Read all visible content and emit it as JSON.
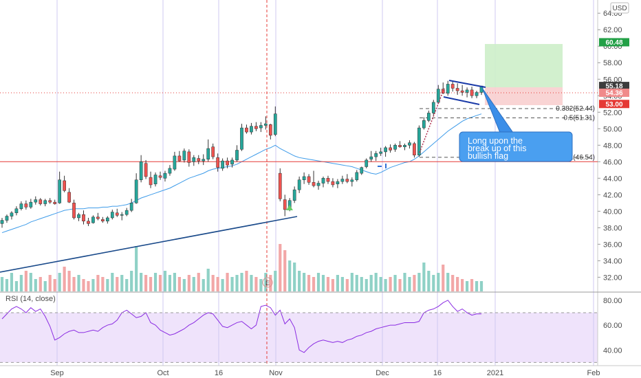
{
  "chart_data": {
    "type": "candlestick",
    "currency": "USD",
    "price_axis": {
      "ticks": [
        "64.00",
        "62.00",
        "60.00",
        "58.00",
        "56.00",
        "54.00",
        "52.00",
        "50.00",
        "48.00",
        "46.00",
        "44.00",
        "42.00",
        "40.00",
        "38.00",
        "36.00",
        "34.00",
        "32.00"
      ],
      "range": [
        30.2,
        65.6
      ]
    },
    "time_axis": {
      "labels": [
        "Sep",
        "Oct",
        "16",
        "Nov",
        "Dec",
        "16",
        "2021",
        "Feb"
      ]
    },
    "price_tags": {
      "target": "60.48",
      "last": "55.18",
      "close": "54.36",
      "stop": "53.00"
    },
    "fib_levels": [
      {
        "label": "0.382(52.44)",
        "value": 52.44
      },
      {
        "label": "0.5(51.31)",
        "value": 51.31
      },
      {
        "label": "1(46.54)",
        "value": 46.54
      }
    ],
    "horizontal_line": 46.0,
    "annotation": "Long upon the break up of this bullish flag",
    "event_marker": "E",
    "rsi": {
      "label": "RSI (14, close)",
      "ticks": [
        "80.00",
        "60.00",
        "40.00"
      ],
      "range": [
        28,
        86
      ],
      "upper_band": 70,
      "lower_band": 30,
      "values": [
        65,
        69,
        73,
        75,
        73,
        70,
        74,
        71,
        73,
        67,
        59,
        48,
        50,
        53,
        55,
        56,
        54,
        54,
        55,
        56,
        55,
        58,
        60,
        61,
        64,
        70,
        72,
        69,
        66,
        67,
        70,
        62,
        60,
        56,
        54,
        52,
        53,
        55,
        57,
        60,
        62,
        65,
        68,
        70,
        69,
        64,
        59,
        58,
        60,
        62,
        63,
        60,
        57,
        60,
        75,
        76,
        74,
        68,
        72,
        61,
        65,
        58,
        40,
        38,
        42,
        45,
        47,
        48,
        47,
        46,
        47,
        46,
        48,
        49,
        51,
        52,
        54,
        55,
        57,
        58,
        59,
        60,
        60,
        61,
        62,
        62,
        62,
        63,
        70,
        72,
        73,
        75,
        78,
        80,
        75,
        71,
        73,
        70,
        68,
        69,
        69
      ]
    },
    "candles": [
      [
        38.5,
        39.2,
        38.0,
        38.9
      ],
      [
        38.9,
        39.6,
        38.6,
        39.4
      ],
      [
        39.4,
        40.0,
        39.0,
        39.8
      ],
      [
        39.8,
        40.6,
        39.5,
        40.3
      ],
      [
        40.3,
        41.2,
        40.1,
        40.9
      ],
      [
        40.9,
        41.3,
        40.2,
        40.5
      ],
      [
        40.5,
        41.5,
        40.3,
        41.1
      ],
      [
        41.1,
        41.8,
        40.8,
        41.4
      ],
      [
        41.4,
        41.6,
        40.7,
        40.9
      ],
      [
        40.9,
        41.5,
        40.6,
        41.3
      ],
      [
        41.3,
        41.6,
        40.9,
        41.1
      ],
      [
        41.1,
        41.4,
        40.8,
        40.9
      ],
      [
        41.0,
        44.8,
        40.9,
        43.8
      ],
      [
        43.7,
        44.3,
        42.3,
        42.5
      ],
      [
        42.3,
        42.8,
        41.0,
        41.1
      ],
      [
        41.0,
        41.4,
        39.0,
        39.2
      ],
      [
        39.2,
        39.8,
        38.8,
        39.6
      ],
      [
        39.6,
        40.1,
        38.4,
        38.8
      ],
      [
        38.8,
        39.2,
        38.2,
        38.5
      ],
      [
        38.6,
        39.5,
        38.5,
        39.3
      ],
      [
        39.3,
        39.8,
        38.9,
        39.1
      ],
      [
        39.0,
        39.3,
        38.6,
        38.8
      ],
      [
        38.8,
        39.4,
        38.5,
        39.2
      ],
      [
        39.2,
        40.2,
        39.0,
        39.9
      ],
      [
        39.8,
        40.3,
        39.3,
        39.5
      ],
      [
        39.5,
        39.9,
        38.9,
        39.6
      ],
      [
        39.6,
        40.4,
        39.4,
        40.1
      ],
      [
        40.1,
        41.5,
        39.9,
        41.0
      ],
      [
        41.0,
        44.6,
        40.9,
        43.8
      ],
      [
        43.8,
        46.8,
        43.5,
        46.0
      ],
      [
        45.8,
        46.2,
        43.9,
        44.2
      ],
      [
        44.1,
        44.8,
        42.8,
        43.2
      ],
      [
        43.3,
        44.7,
        43.0,
        44.4
      ],
      [
        44.3,
        44.8,
        43.8,
        44.1
      ],
      [
        44.0,
        44.9,
        43.6,
        44.6
      ],
      [
        44.6,
        45.6,
        44.3,
        45.2
      ],
      [
        45.1,
        47.2,
        44.9,
        46.7
      ],
      [
        46.7,
        47.3,
        46.0,
        46.1
      ],
      [
        46.2,
        47.6,
        45.9,
        47.3
      ],
      [
        47.2,
        47.5,
        45.4,
        45.9
      ],
      [
        46.0,
        46.8,
        45.5,
        46.5
      ],
      [
        46.4,
        46.8,
        45.7,
        46.1
      ],
      [
        46.1,
        46.9,
        45.6,
        46.3
      ],
      [
        46.3,
        48.7,
        46.0,
        47.6
      ],
      [
        47.8,
        48.2,
        46.3,
        46.6
      ],
      [
        46.5,
        47.0,
        44.8,
        45.3
      ],
      [
        45.2,
        46.4,
        44.9,
        46.1
      ],
      [
        46.1,
        46.5,
        45.2,
        45.6
      ],
      [
        45.7,
        46.5,
        45.3,
        46.2
      ],
      [
        46.2,
        48.0,
        46.0,
        47.4
      ],
      [
        47.5,
        50.6,
        47.3,
        50.1
      ],
      [
        50.1,
        50.5,
        49.4,
        49.6
      ],
      [
        49.6,
        50.7,
        49.3,
        50.3
      ],
      [
        50.3,
        50.8,
        49.7,
        50.0
      ],
      [
        50.1,
        50.8,
        49.6,
        50.4
      ],
      [
        50.4,
        51.5,
        49.9,
        50.6
      ],
      [
        50.5,
        50.6,
        48.7,
        49.2
      ],
      [
        49.3,
        52.7,
        49.1,
        51.8
      ],
      [
        44.6,
        45.2,
        41.2,
        41.5
      ],
      [
        41.4,
        42.0,
        39.4,
        40.2
      ],
      [
        40.2,
        41.6,
        40.0,
        41.3
      ],
      [
        41.3,
        43.0,
        41.0,
        42.6
      ],
      [
        42.6,
        44.2,
        42.2,
        43.8
      ],
      [
        43.8,
        44.7,
        43.3,
        44.2
      ],
      [
        44.2,
        44.5,
        43.2,
        43.5
      ],
      [
        43.5,
        44.9,
        42.9,
        43.1
      ],
      [
        43.1,
        43.7,
        42.6,
        43.4
      ],
      [
        43.4,
        44.2,
        42.9,
        44.0
      ],
      [
        44.0,
        44.3,
        43.3,
        43.6
      ],
      [
        43.6,
        44.0,
        42.9,
        43.2
      ],
      [
        43.3,
        43.9,
        42.8,
        43.6
      ],
      [
        43.6,
        44.3,
        43.3,
        43.9
      ],
      [
        43.9,
        44.5,
        43.4,
        43.6
      ],
      [
        43.6,
        44.1,
        43.0,
        43.8
      ],
      [
        43.8,
        45.0,
        43.6,
        44.7
      ],
      [
        44.6,
        45.4,
        44.4,
        45.3
      ],
      [
        45.4,
        46.4,
        45.2,
        46.2
      ],
      [
        46.3,
        47.3,
        46.0,
        46.6
      ],
      [
        46.6,
        47.3,
        46.1,
        47.0
      ],
      [
        47.0,
        47.7,
        46.7,
        47.2
      ],
      [
        47.2,
        47.9,
        46.6,
        47.7
      ],
      [
        47.7,
        48.1,
        47.1,
        47.4
      ],
      [
        47.5,
        48.2,
        47.2,
        48.0
      ],
      [
        48.0,
        48.5,
        47.7,
        47.8
      ],
      [
        47.8,
        48.2,
        47.4,
        48.0
      ],
      [
        48.0,
        48.6,
        47.6,
        48.3
      ],
      [
        48.2,
        48.4,
        46.5,
        46.8
      ],
      [
        46.8,
        50.4,
        46.6,
        50.1
      ],
      [
        50.1,
        51.4,
        49.9,
        51.0
      ],
      [
        51.0,
        52.2,
        50.8,
        51.9
      ],
      [
        51.9,
        53.5,
        51.6,
        53.2
      ],
      [
        53.2,
        55.3,
        53.0,
        54.8
      ],
      [
        54.8,
        55.6,
        54.2,
        54.3
      ],
      [
        54.3,
        55.8,
        54.0,
        55.4
      ],
      [
        55.4,
        55.7,
        54.5,
        54.9
      ],
      [
        54.9,
        55.5,
        54.1,
        54.6
      ],
      [
        54.6,
        55.3,
        54.0,
        54.4
      ],
      [
        54.4,
        55.0,
        53.8,
        54.7
      ],
      [
        54.7,
        55.1,
        53.7,
        54.0
      ],
      [
        54.0,
        54.6,
        53.7,
        54.4
      ],
      [
        54.4,
        55.2,
        54.1,
        55.18
      ]
    ],
    "volume": [
      7,
      6,
      9,
      5,
      8,
      10,
      9,
      6,
      7,
      5,
      8,
      6,
      9,
      12,
      10,
      7,
      8,
      6,
      5,
      6,
      8,
      7,
      6,
      9,
      7,
      8,
      6,
      10,
      22,
      9,
      8,
      7,
      9,
      8,
      10,
      8,
      9,
      7,
      6,
      8,
      7,
      9,
      6,
      11,
      8,
      7,
      6,
      9,
      7,
      8,
      9,
      10,
      8,
      7,
      6,
      9,
      8,
      10,
      23,
      20,
      15,
      14,
      10,
      9,
      8,
      7,
      9,
      8,
      7,
      6,
      8,
      7,
      6,
      9,
      8,
      7,
      6,
      8,
      9,
      7,
      6,
      7,
      8,
      6,
      9,
      7,
      8,
      9,
      14,
      10,
      8,
      9,
      13,
      9,
      8,
      7,
      6,
      5,
      6,
      5,
      5
    ],
    "ma": [
      37.4,
      37.6,
      37.8,
      38.0,
      38.2,
      38.4,
      38.7,
      38.9,
      39.1,
      39.3,
      39.5,
      39.7,
      39.9,
      40.1,
      40.2,
      40.3,
      40.3,
      40.3,
      40.4,
      40.4,
      40.4,
      40.5,
      40.5,
      40.6,
      40.6,
      40.7,
      40.8,
      41.0,
      41.3,
      41.6,
      41.8,
      42.0,
      42.2,
      42.4,
      42.6,
      42.8,
      43.1,
      43.4,
      43.7,
      44.0,
      44.2,
      44.4,
      44.6,
      44.9,
      45.1,
      45.2,
      45.3,
      45.4,
      45.5,
      45.7,
      46.0,
      46.3,
      46.6,
      46.9,
      47.2,
      47.5,
      47.7,
      48.0,
      47.6,
      47.3,
      47.0,
      46.7,
      46.5,
      46.4,
      46.3,
      46.2,
      46.1,
      46.0,
      45.9,
      45.8,
      45.7,
      45.6,
      45.5,
      45.4,
      45.2,
      45.0,
      44.8,
      44.6,
      44.5,
      44.7,
      45.0,
      45.3,
      45.5,
      45.7,
      45.9,
      46.0,
      46.3,
      46.7,
      47.2,
      47.7,
      48.2,
      48.7,
      49.2,
      49.7,
      50.1,
      50.5,
      50.9,
      51.2,
      51.4,
      51.6,
      51.8
    ]
  }
}
